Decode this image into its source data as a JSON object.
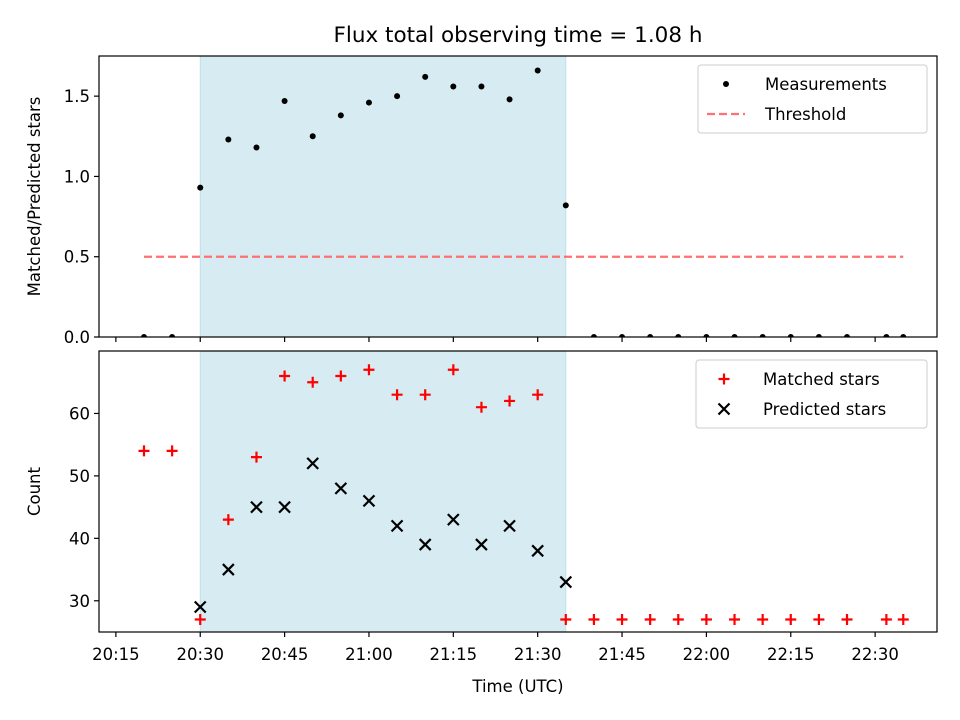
{
  "title": "Flux total observing time = 1.08 h",
  "chart_data": [
    {
      "type": "scatter",
      "ylabel": "Matched/Predicted stars",
      "ylim": [
        0,
        1.75
      ],
      "yticks": [
        "0.0",
        "0.5",
        "1.0",
        "1.5"
      ],
      "xlim": [
        "20:12",
        "22:41"
      ],
      "shaded_interval": [
        "20:30",
        "21:35"
      ],
      "shade_color": "#add8e6",
      "legend": "top-right",
      "series": [
        {
          "name": "Measurements",
          "marker": "dot",
          "color": "#000000",
          "x": [
            "20:20",
            "20:25",
            "20:30",
            "20:35",
            "20:40",
            "20:45",
            "20:50",
            "20:55",
            "21:00",
            "21:05",
            "21:10",
            "21:15",
            "21:20",
            "21:25",
            "21:30",
            "21:35",
            "21:40",
            "21:45",
            "21:50",
            "21:55",
            "22:00",
            "22:05",
            "22:10",
            "22:15",
            "22:20",
            "22:25",
            "22:32",
            "22:35"
          ],
          "y": [
            0,
            0,
            0.93,
            1.23,
            1.18,
            1.47,
            1.25,
            1.38,
            1.46,
            1.5,
            1.62,
            1.56,
            1.56,
            1.48,
            1.66,
            0.82,
            0,
            0,
            0,
            0,
            0,
            0,
            0,
            0,
            0,
            0,
            0,
            0
          ]
        },
        {
          "name": "Threshold",
          "marker": "dashed-line",
          "color": "#ff7070",
          "x": [
            "20:20",
            "22:35"
          ],
          "y": [
            0.5,
            0.5
          ]
        }
      ]
    },
    {
      "type": "scatter",
      "ylabel": "Count",
      "xlabel": "Time (UTC)",
      "ylim": [
        25,
        70
      ],
      "yticks": [
        "30",
        "40",
        "50",
        "60"
      ],
      "xlim": [
        "20:12",
        "22:41"
      ],
      "xticks": [
        "20:15",
        "20:30",
        "20:45",
        "21:00",
        "21:15",
        "21:30",
        "21:45",
        "22:00",
        "22:15",
        "22:30"
      ],
      "shaded_interval": [
        "20:30",
        "21:35"
      ],
      "shade_color": "#add8e6",
      "legend": "top-right",
      "series": [
        {
          "name": "Matched stars",
          "marker": "plus",
          "color": "#ff0000",
          "x": [
            "20:20",
            "20:25",
            "20:30",
            "20:35",
            "20:40",
            "20:45",
            "20:50",
            "20:55",
            "21:00",
            "21:05",
            "21:10",
            "21:15",
            "21:20",
            "21:25",
            "21:30",
            "21:35",
            "21:40",
            "21:45",
            "21:50",
            "21:55",
            "22:00",
            "22:05",
            "22:10",
            "22:15",
            "22:20",
            "22:25",
            "22:32",
            "22:35"
          ],
          "y": [
            54,
            54,
            27,
            43,
            53,
            66,
            65,
            66,
            67,
            63,
            63,
            67,
            61,
            62,
            63,
            27,
            27,
            27,
            27,
            27,
            27,
            27,
            27,
            27,
            27,
            27,
            27,
            27
          ]
        },
        {
          "name": "Predicted stars",
          "marker": "x",
          "color": "#000000",
          "x": [
            "20:30",
            "20:35",
            "20:40",
            "20:45",
            "20:50",
            "20:55",
            "21:00",
            "21:05",
            "21:10",
            "21:15",
            "21:20",
            "21:25",
            "21:30",
            "21:35"
          ],
          "y": [
            29,
            35,
            45,
            45,
            52,
            48,
            46,
            42,
            39,
            43,
            39,
            42,
            38,
            33
          ]
        }
      ]
    }
  ]
}
